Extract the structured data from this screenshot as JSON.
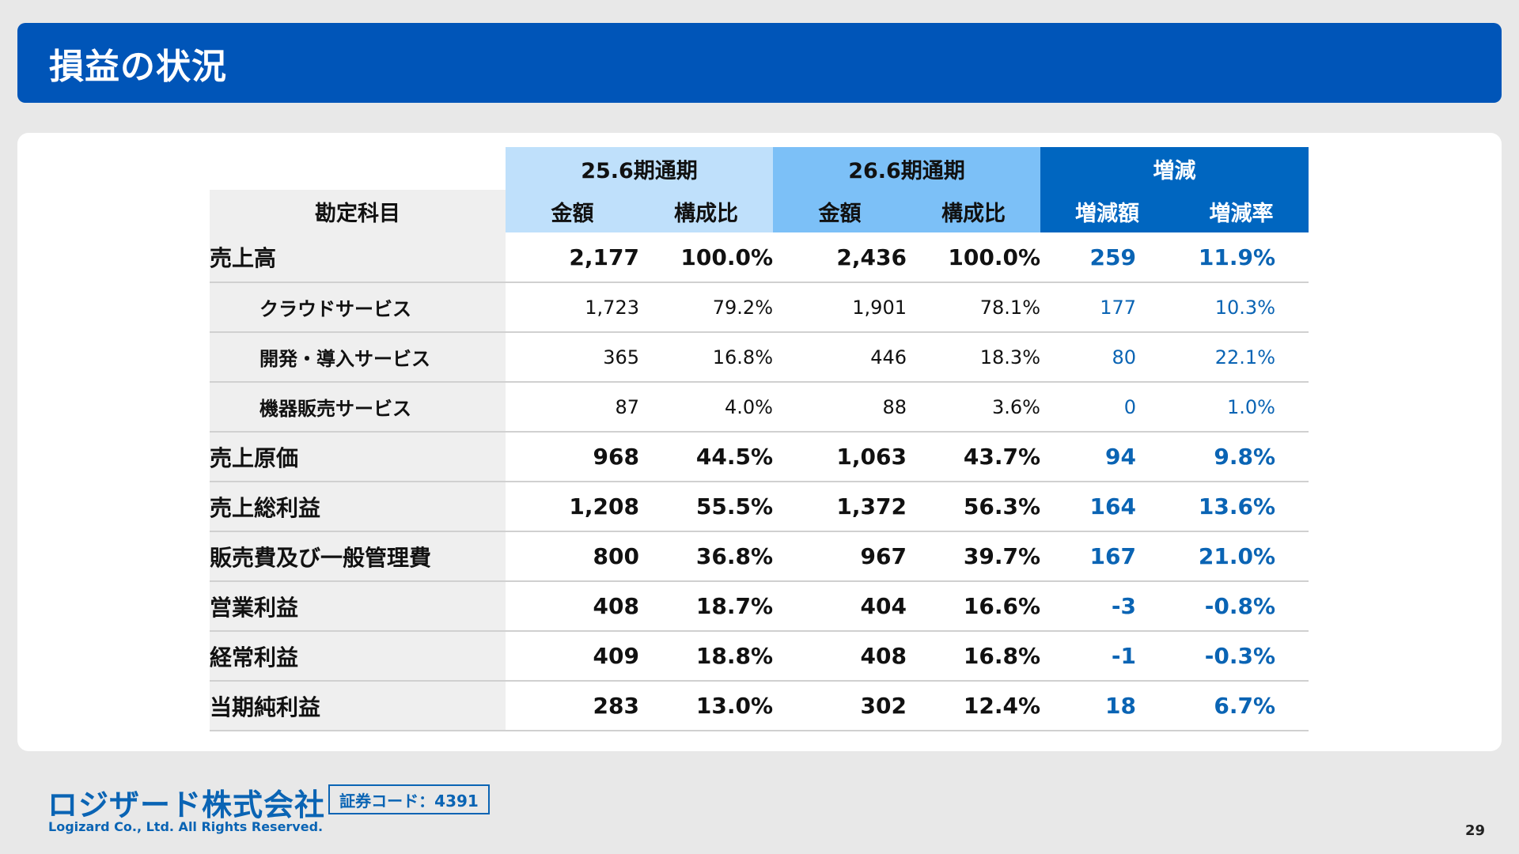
{
  "title": "損益の状況",
  "table": {
    "group_headers": [
      "25.6期通期",
      "26.6期通期",
      "増減"
    ],
    "account_header": "勘定科目",
    "sub_headers": [
      "金額",
      "構成比",
      "金額",
      "構成比",
      "増減額",
      "増減率"
    ],
    "rows": [
      {
        "label": "売上高",
        "sub": false,
        "amt25": "2,177",
        "pct25": "100.0%",
        "amt26": "2,436",
        "pct26": "100.0%",
        "diff": "259",
        "rate": "11.9%"
      },
      {
        "label": "クラウドサービス",
        "sub": true,
        "amt25": "1,723",
        "pct25": "79.2%",
        "amt26": "1,901",
        "pct26": "78.1%",
        "diff": "177",
        "rate": "10.3%"
      },
      {
        "label": "開発・導入サービス",
        "sub": true,
        "amt25": "365",
        "pct25": "16.8%",
        "amt26": "446",
        "pct26": "18.3%",
        "diff": "80",
        "rate": "22.1%"
      },
      {
        "label": "機器販売サービス",
        "sub": true,
        "amt25": "87",
        "pct25": "4.0%",
        "amt26": "88",
        "pct26": "3.6%",
        "diff": "0",
        "rate": "1.0%"
      },
      {
        "label": "売上原価",
        "sub": false,
        "amt25": "968",
        "pct25": "44.5%",
        "amt26": "1,063",
        "pct26": "43.7%",
        "diff": "94",
        "rate": "9.8%"
      },
      {
        "label": "売上総利益",
        "sub": false,
        "amt25": "1,208",
        "pct25": "55.5%",
        "amt26": "1,372",
        "pct26": "56.3%",
        "diff": "164",
        "rate": "13.6%"
      },
      {
        "label": "販売費及び一般管理費",
        "sub": false,
        "amt25": "800",
        "pct25": "36.8%",
        "amt26": "967",
        "pct26": "39.7%",
        "diff": "167",
        "rate": "21.0%"
      },
      {
        "label": "営業利益",
        "sub": false,
        "amt25": "408",
        "pct25": "18.7%",
        "amt26": "404",
        "pct26": "16.6%",
        "diff": "-3",
        "rate": "-0.8%"
      },
      {
        "label": "経常利益",
        "sub": false,
        "amt25": "409",
        "pct25": "18.8%",
        "amt26": "408",
        "pct26": "16.8%",
        "diff": "-1",
        "rate": "-0.3%"
      },
      {
        "label": "当期純利益",
        "sub": false,
        "amt25": "283",
        "pct25": "13.0%",
        "amt26": "302",
        "pct26": "12.4%",
        "diff": "18",
        "rate": "6.7%"
      }
    ]
  },
  "footer": {
    "logo": "ロジザード株式会社",
    "copyright": "Logizard Co., Ltd. All Rights Reserved.",
    "stock_code": "証券コード：4391",
    "page_number": "29"
  },
  "colors": {
    "title_bar": "#0055b8",
    "header_25": "#bfe0fb",
    "header_26": "#7cc0f7",
    "header_change": "#0066c0",
    "change_text": "#0a64b4"
  }
}
